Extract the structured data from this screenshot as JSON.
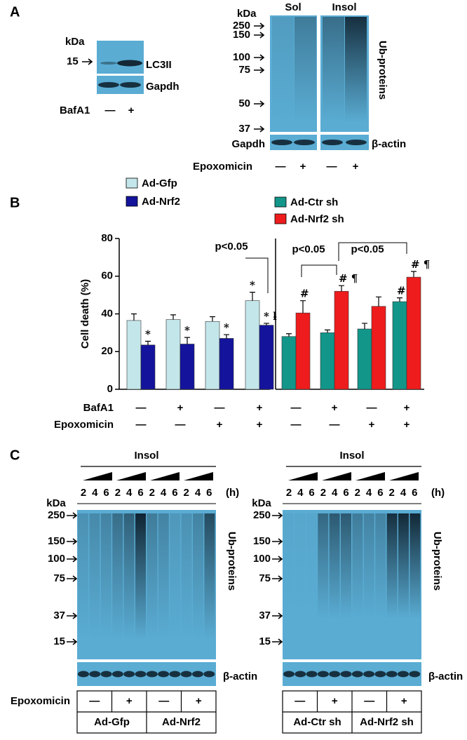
{
  "panel_labels": [
    "A",
    "B",
    "C"
  ],
  "panel_a": {
    "left_blot": {
      "kda": "kDa",
      "marker": 15,
      "bands": [
        "LC3II",
        "Gapdh"
      ],
      "treatment": "BafA1",
      "signs": [
        "—",
        "+"
      ]
    },
    "right_blot": {
      "kda": "kDa",
      "markers": [
        250,
        150,
        100,
        75,
        50,
        37
      ],
      "fractions": [
        "Sol",
        "Insol"
      ],
      "target": "Ub-proteins",
      "loading": [
        "Gapdh",
        "β-actin"
      ],
      "treatment": "Epoxomicin",
      "signs": [
        "—",
        "+",
        "—",
        "+"
      ]
    }
  },
  "chart_data": [
    {
      "type": "bar",
      "y_label": "Cell death (%)",
      "categories": [
        null,
        null,
        null,
        null
      ],
      "ylim": [
        0,
        80
      ],
      "yticks": [
        0,
        20,
        40,
        60,
        80
      ],
      "series": [
        {
          "name": "Ad-Gfp",
          "color": "#c3e6ea",
          "values": [
            36.5,
            37,
            36,
            47
          ],
          "errors": [
            3.5,
            2.5,
            2.5,
            4.5
          ],
          "markers": [
            null,
            null,
            null,
            "*"
          ]
        },
        {
          "name": "Ad-Nrf2",
          "color": "#13139c",
          "values": [
            23.5,
            24,
            27,
            34
          ],
          "errors": [
            2,
            3.5,
            2,
            1
          ],
          "markers": [
            "*",
            "*",
            "*",
            "* ƚ"
          ]
        }
      ],
      "significance": [
        "p<0.05"
      ],
      "condition_rows": [
        {
          "label": "BafA1",
          "signs": [
            "—",
            "+",
            "—",
            "+"
          ]
        },
        {
          "label": "Epoxomicin",
          "signs": [
            "—",
            "—",
            "+",
            "+"
          ]
        }
      ]
    },
    {
      "type": "bar",
      "categories": [
        null,
        null,
        null,
        null
      ],
      "ylim": [
        0,
        80
      ],
      "series": [
        {
          "name": "Ad-Ctr sh",
          "color": "#12968a",
          "values": [
            28,
            30,
            32,
            46.5
          ],
          "errors": [
            1.5,
            1.5,
            3,
            2
          ],
          "markers": [
            null,
            null,
            null,
            "#"
          ]
        },
        {
          "name": "Ad-Nrf2 sh",
          "color": "#ee1c1c",
          "values": [
            40.5,
            52,
            44,
            59.5
          ],
          "errors": [
            6.5,
            3,
            5,
            3
          ],
          "markers": [
            "#",
            "# ¶",
            null,
            "# ¶"
          ]
        }
      ],
      "significance": [
        "p<0.05",
        "p<0.05"
      ],
      "condition_rows": [
        {
          "signs": [
            "—",
            "+",
            "—",
            "+"
          ]
        },
        {
          "signs": [
            "—",
            "—",
            "+",
            "+"
          ]
        }
      ]
    }
  ],
  "panel_c": [
    {
      "fraction": "Insol",
      "times": [
        "2",
        "4",
        "6",
        "2",
        "4",
        "6",
        "2",
        "4",
        "6",
        "2",
        "4",
        "6"
      ],
      "time_unit": "(h)",
      "kda": "kDa",
      "markers": [
        250,
        150,
        100,
        75,
        37,
        15
      ],
      "target": "Ub-proteins",
      "loading": "β-actin",
      "treatment": "Epoxomicin",
      "signs": [
        "—",
        "+",
        "—",
        "+"
      ],
      "groups": [
        "Ad-Gfp",
        "Ad-Nrf2"
      ]
    },
    {
      "fraction": "Insol",
      "times": [
        "2",
        "4",
        "6",
        "2",
        "4",
        "6",
        "2",
        "4",
        "6",
        "2",
        "4",
        "6"
      ],
      "time_unit": "(h)",
      "kda": "kDa",
      "markers": [
        250,
        150,
        100,
        75,
        37,
        15
      ],
      "target": "Ub-proteins",
      "loading": "β-actin",
      "signs": [
        "—",
        "+",
        "—",
        "+"
      ],
      "groups": [
        "Ad-Ctr sh",
        "Ad-Nrf2 sh"
      ]
    }
  ]
}
